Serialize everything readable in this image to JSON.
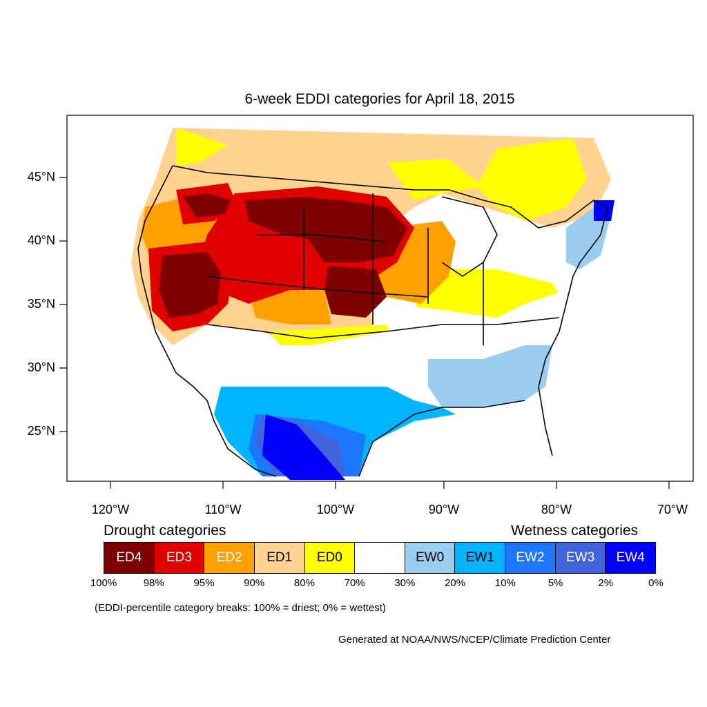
{
  "title": "6-week EDDI categories for April 18, 2015",
  "lat_labels": [
    "45°N",
    "40°N",
    "35°N",
    "30°N",
    "25°N"
  ],
  "lon_labels": [
    "120°W",
    "110°W",
    "100°W",
    "90°W",
    "80°W",
    "70°W"
  ],
  "drought_heading": "Drought categories",
  "wetness_heading": "Wetness categories",
  "categories": [
    {
      "label": "ED4",
      "color": "#7f0000",
      "text_color": "#ffffff"
    },
    {
      "label": "ED3",
      "color": "#e10000",
      "text_color": "#ffffff"
    },
    {
      "label": "ED2",
      "color": "#ff9f00",
      "text_color": "#ffffff"
    },
    {
      "label": "ED1",
      "color": "#ffd38f",
      "text_color": "#000000"
    },
    {
      "label": "ED0",
      "color": "#ffff00",
      "text_color": "#000000"
    },
    {
      "label": "",
      "color": "#ffffff",
      "text_color": "#000000"
    },
    {
      "label": "EW0",
      "color": "#9bcdef",
      "text_color": "#000000"
    },
    {
      "label": "EW1",
      "color": "#00b4ff",
      "text_color": "#000000"
    },
    {
      "label": "EW2",
      "color": "#1e78ff",
      "text_color": "#ffffff"
    },
    {
      "label": "EW3",
      "color": "#4164dc",
      "text_color": "#ffffff"
    },
    {
      "label": "EW4",
      "color": "#0000ff",
      "text_color": "#ffffff"
    }
  ],
  "breaks": [
    "100%",
    "98%",
    "95%",
    "90%",
    "80%",
    "70%",
    "30%",
    "20%",
    "10%",
    "5%",
    "2%",
    "0%"
  ],
  "note": "(EDDI-percentile category breaks: 100% = driest; 0% = wettest)",
  "credit": "Generated at NOAA/NWS/NCEP/Climate Prediction Center"
}
